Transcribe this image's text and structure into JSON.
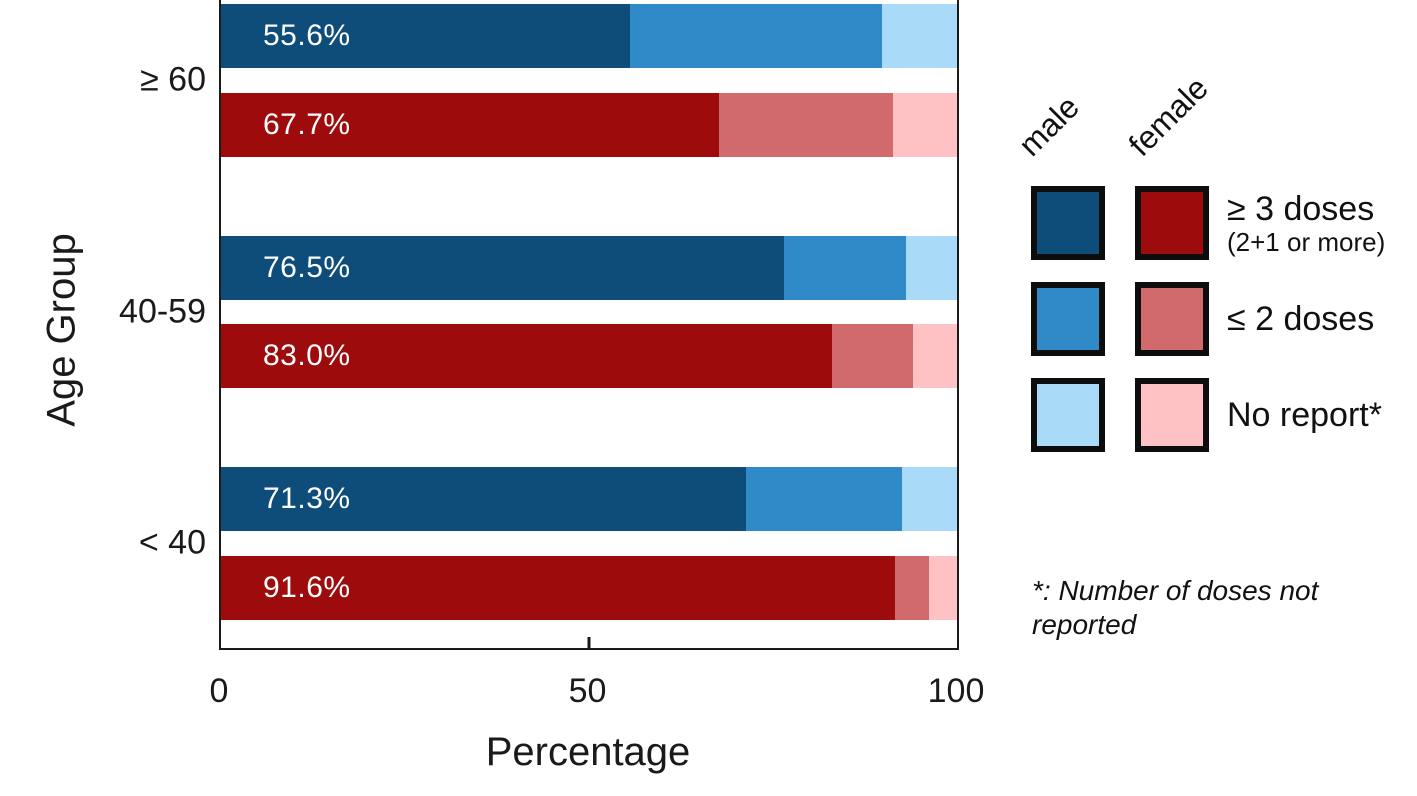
{
  "chart_data": {
    "type": "bar",
    "orientation": "horizontal",
    "stacked": true,
    "title": "",
    "xlabel": "Percentage",
    "ylabel": "Age Group",
    "xlim": [
      0,
      100
    ],
    "xticks": [
      0,
      50,
      100
    ],
    "grid": false,
    "legend_position": "right",
    "categories": [
      "≥ 60",
      "40-59",
      "< 40"
    ],
    "segments": [
      "≥ 3 doses",
      "≤ 2 doses",
      "No report*"
    ],
    "groups": [
      {
        "category": "≥ 60",
        "bars": [
          {
            "sex": "male",
            "label": "55.6%",
            "values": [
              55.6,
              34.2,
              10.2
            ]
          },
          {
            "sex": "female",
            "label": "67.7%",
            "values": [
              67.7,
              23.6,
              8.7
            ]
          }
        ]
      },
      {
        "category": "40-59",
        "bars": [
          {
            "sex": "male",
            "label": "76.5%",
            "values": [
              76.5,
              16.6,
              6.9
            ]
          },
          {
            "sex": "female",
            "label": "83.0%",
            "values": [
              83.0,
              11.0,
              6.0
            ]
          }
        ]
      },
      {
        "category": "< 40",
        "bars": [
          {
            "sex": "male",
            "label": "71.3%",
            "values": [
              71.3,
              21.2,
              7.5
            ]
          },
          {
            "sex": "female",
            "label": "91.6%",
            "values": [
              91.6,
              4.6,
              3.8
            ]
          }
        ]
      }
    ]
  },
  "legend": {
    "columns": [
      "male",
      "female"
    ],
    "rows": [
      {
        "label": "≥ 3 doses",
        "sublabel": "(2+1 or more)"
      },
      {
        "label": "≤ 2 doses"
      },
      {
        "label": "No report*"
      }
    ]
  },
  "footnote": {
    "text": "*: Number of doses not reported"
  },
  "colors": {
    "series": {
      "male": [
        "#0e4d7a",
        "#2f8ac7",
        "#a9dbf9"
      ],
      "female": [
        "#9e0b0d",
        "#d06a6d",
        "#fec2c4"
      ]
    },
    "axis": "#1a1a1a",
    "bar_label_text": "#ffffff",
    "background": "#ffffff"
  }
}
